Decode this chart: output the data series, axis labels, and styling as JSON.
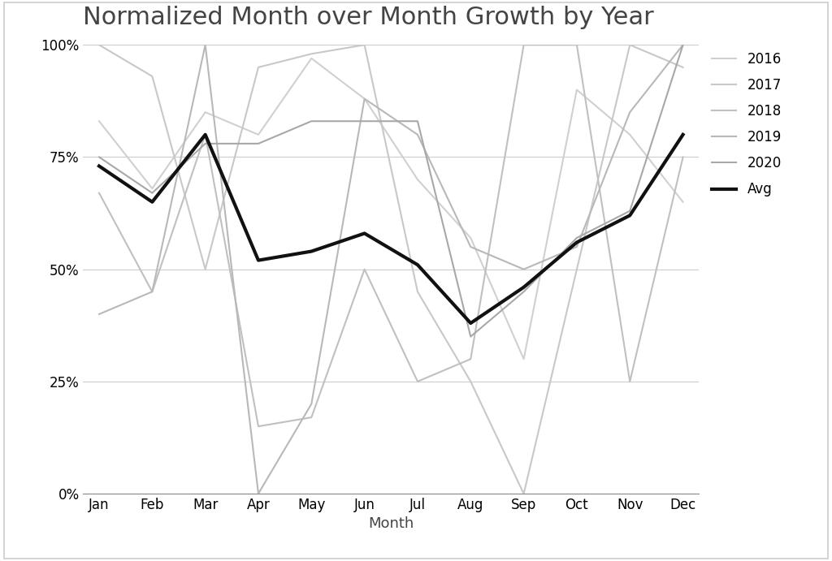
{
  "title": "Normalized Month over Month Growth by Year",
  "xlabel": "Month",
  "months": [
    "Jan",
    "Feb",
    "Mar",
    "Apr",
    "May",
    "Jun",
    "Jul",
    "Aug",
    "Sep",
    "Oct",
    "Nov",
    "Dec"
  ],
  "series": {
    "2016": [
      83,
      68,
      85,
      80,
      97,
      88,
      70,
      57,
      30,
      90,
      80,
      65
    ],
    "2017": [
      100,
      93,
      50,
      95,
      98,
      100,
      45,
      25,
      0,
      50,
      100,
      95
    ],
    "2018": [
      67,
      45,
      80,
      15,
      17,
      50,
      25,
      30,
      100,
      100,
      25,
      75
    ],
    "2019": [
      40,
      45,
      100,
      0,
      20,
      88,
      80,
      55,
      50,
      55,
      85,
      100
    ],
    "2020": [
      75,
      67,
      78,
      78,
      83,
      83,
      83,
      35,
      45,
      57,
      63,
      100
    ],
    "Avg": [
      73,
      65,
      80,
      52,
      54,
      58,
      51,
      38,
      46,
      56,
      62,
      80
    ]
  },
  "colors": {
    "2016": "#d0d0d0",
    "2017": "#c8c8c8",
    "2018": "#c0c0c0",
    "2019": "#b8b8b8",
    "2020": "#a8a8a8",
    "Avg": "#111111"
  },
  "linewidths": {
    "2016": 1.5,
    "2017": 1.5,
    "2018": 1.5,
    "2019": 1.5,
    "2020": 1.5,
    "Avg": 3.0
  },
  "legend_years": [
    "2016",
    "2017",
    "2018",
    "2019",
    "2020",
    "Avg"
  ],
  "ylim": [
    0,
    100
  ],
  "yticks": [
    0,
    25,
    50,
    75,
    100
  ],
  "ytick_labels": [
    "0%",
    "25%",
    "50%",
    "75%",
    "100%"
  ],
  "figure_background": "#ffffff",
  "plot_background": "#ffffff",
  "title_fontsize": 22,
  "axis_label_fontsize": 13,
  "tick_fontsize": 12,
  "legend_fontsize": 12,
  "grid_color": "#cccccc",
  "grid_linewidth": 0.8,
  "border_color": "#cccccc"
}
